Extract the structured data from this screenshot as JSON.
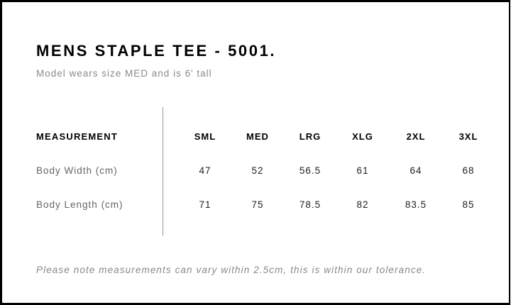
{
  "title": "MENS STAPLE TEE - 5001.",
  "subtitle": "Model wears size MED and is 6' tall",
  "table": {
    "header": "MEASUREMENT",
    "sizes": [
      "SML",
      "MED",
      "LRG",
      "XLG",
      "2XL",
      "3XL"
    ],
    "rows": [
      {
        "label": "Body Width (cm)",
        "values": [
          "47",
          "52",
          "56.5",
          "61",
          "64",
          "68"
        ]
      },
      {
        "label": "Body Length (cm)",
        "values": [
          "71",
          "75",
          "78.5",
          "82",
          "83.5",
          "85"
        ]
      }
    ]
  },
  "note": "Please note measurements can vary within 2.5cm, this is within our tolerance."
}
